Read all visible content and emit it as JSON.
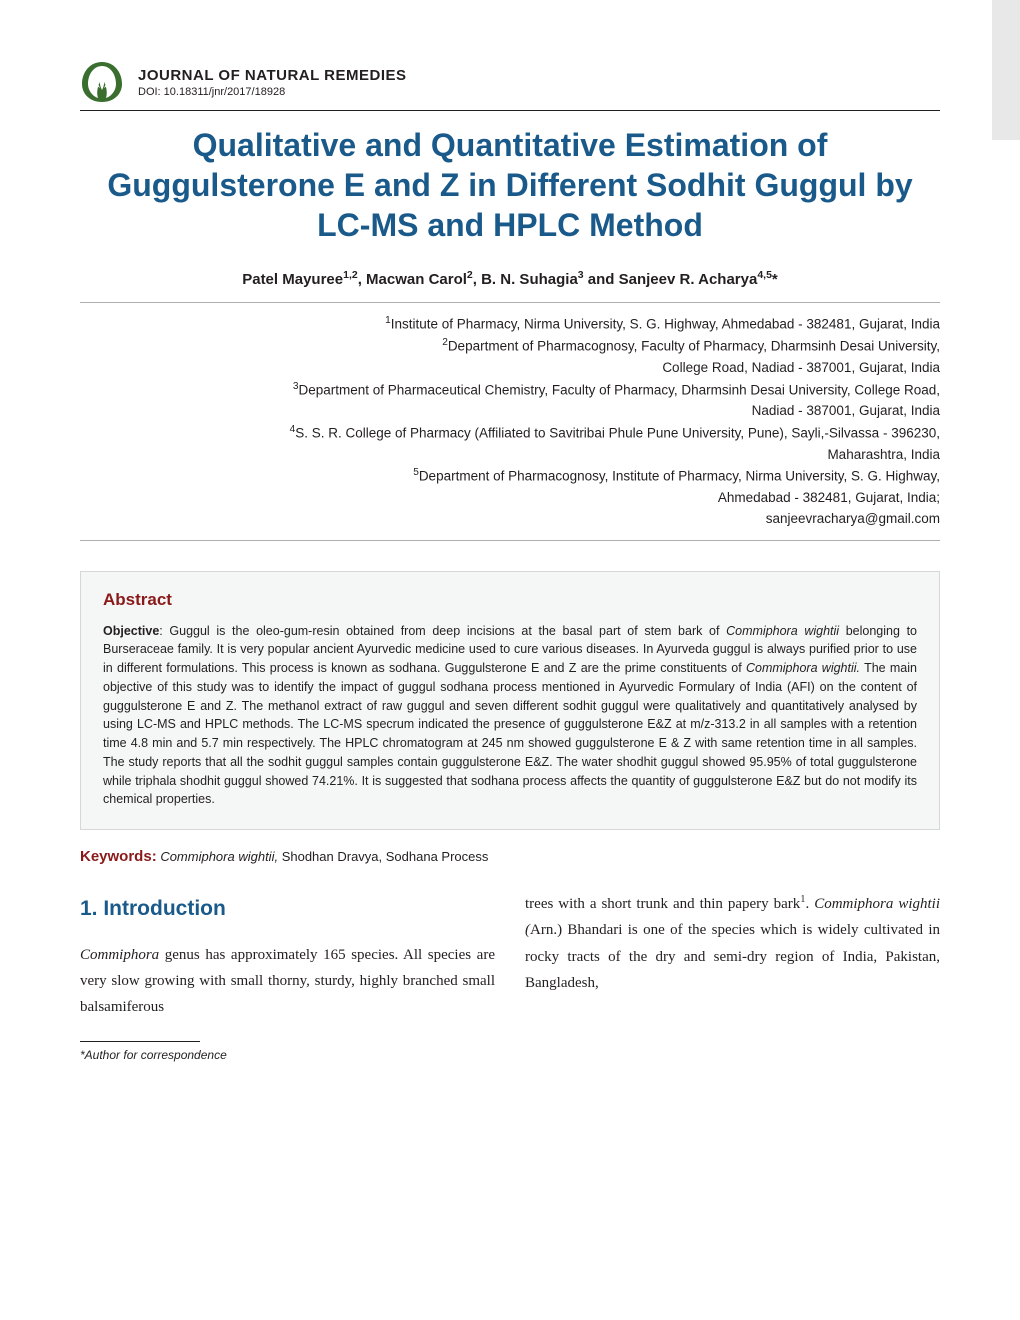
{
  "journal": {
    "name": "JOURNAL OF NATURAL REMEDIES",
    "doi": "DOI: 10.18311/jnr/2017/18928",
    "logo_bg_color": "#3a6e2f",
    "logo_leaf_color": "#ffffff"
  },
  "title": "Qualitative and Quantitative Estimation of Guggulsterone E and Z in Different Sodhit Guggul by LC-MS and HPLC Method",
  "title_color": "#1a5a8a",
  "authors_html": "Patel Mayuree<sup>1,2</sup>, Macwan Carol<sup>2</sup>, B. N. Suhagia<sup>3</sup> and Sanjeev R. Acharya<sup>4,5</sup>*",
  "affiliations_html": "<sup>1</sup>Institute of Pharmacy, Nirma University, S. G. Highway, Ahmedabad - 382481, Gujarat, India<br><sup>2</sup>Department of Pharmacognosy, Faculty of Pharmacy, Dharmsinh Desai University,<br>College Road, Nadiad - 387001, Gujarat, India<br><sup>3</sup>Department of Pharmaceutical Chemistry, Faculty of Pharmacy, Dharmsinh Desai University, College Road,<br>Nadiad - 387001, Gujarat, India<br><sup>4</sup>S. S. R. College of Pharmacy (Affiliated to Savitribai Phule Pune University, Pune), Sayli,-Silvassa - 396230,<br>Maharashtra, India<br><sup>5</sup>Department of Pharmacognosy, Institute of Pharmacy, Nirma University, S. G. Highway,<br>Ahmedabad - 382481, Gujarat, India;<br>sanjeevracharya@gmail.com",
  "abstract": {
    "heading": "Abstract",
    "heading_color": "#8a1a1a",
    "body_html": "<b>Objective</b>: Guggul is the oleo-gum-resin obtained from deep incisions at the basal part of stem bark of <i>Commiphora wightii</i> belonging to Burseraceae family. It is very popular ancient Ayurvedic medicine used to cure various diseases. In Ayurveda guggul is always purified prior to use in different formulations. This process is known as sodhana. Guggulsterone E and Z are the prime constituents of <i>Commiphora wightii.</i> The main objective of this study was to identify the impact of guggul sodhana process mentioned in Ayurvedic Formulary of India (AFI) on the content of guggulsterone E and Z. The methanol extract of raw guggul and seven different sodhit guggul were qualitatively and quantitatively analysed by using LC-MS and HPLC methods. The LC-MS specrum indicated the presence of guggulsterone E&Z at m/z-313.2 in all samples with a retention time 4.8 min and 5.7 min respectively. The HPLC chromatogram at 245 nm showed guggulsterone E & Z with same retention time in all samples. The study reports that all the sodhit guggul samples contain guggulsterone E&Z. The water shodhit guggul showed 95.95% of total guggulsterone while triphala shodhit guggul showed 74.21%. It is suggested that sodhana process affects the quantity of guggulsterone E&Z but do not modify its chemical properties."
  },
  "keywords": {
    "label": "Keywords:",
    "label_color": "#8a1a1a",
    "text_html": " <i>Commiphora wightii,</i> Shodhan Dravya, Sodhana Process"
  },
  "section": {
    "heading": "1.  Introduction",
    "heading_color": "#1a5a8a",
    "col1_html": "<i>Commiphora</i> genus has approximately 165 species. All species are very slow growing with small thorny, sturdy, highly branched small balsamiferous",
    "col2_html": "trees with a short trunk and thin papery bark<sup>1</sup>. <i>Commiphora wightii (</i>Arn.) Bhandari is one of the species which is widely cultivated in rocky tracts of the dry and semi-dry region of India, Pakistan, Bangladesh,"
  },
  "footnote": "*Author for correspondence",
  "colors": {
    "text": "#231f20",
    "abstract_bg": "#f5f6f6",
    "abstract_border": "#d6d7d8",
    "rule": "#231f20",
    "light_rule": "#b0b0b0"
  }
}
